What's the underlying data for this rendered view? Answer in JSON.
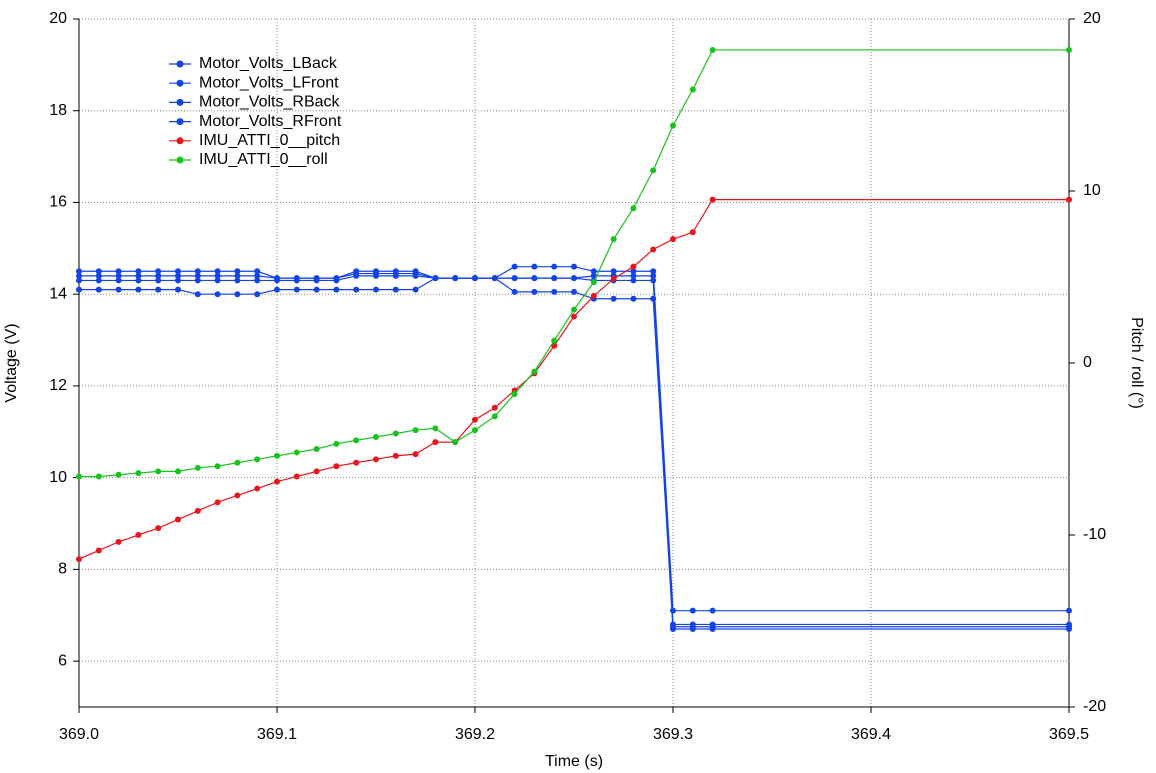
{
  "chart_data": {
    "type": "line",
    "xlabel": "Time (s)",
    "ylabel": "Voltage (V)",
    "y2label": "Pitch / roll (°)",
    "x": [
      369,
      369.01,
      369.02,
      369.03,
      369.04,
      369.05,
      369.06,
      369.07,
      369.08,
      369.09,
      369.1,
      369.11,
      369.12,
      369.13,
      369.14,
      369.15,
      369.16,
      369.17,
      369.18,
      369.19,
      369.2,
      369.21,
      369.22,
      369.23,
      369.24,
      369.25,
      369.26,
      369.27,
      369.28,
      369.29,
      369.3,
      369.31,
      369.32,
      369.5
    ],
    "xlim": [
      369,
      369.5
    ],
    "xticks": [
      {
        "value": 369,
        "label": "369.0"
      },
      369.1,
      369.2,
      369.3,
      369.4,
      369.5
    ],
    "ylim": [
      5,
      20
    ],
    "yticks": [
      6,
      8,
      10,
      12,
      14,
      16,
      18,
      20
    ],
    "y2lim": [
      -20,
      20
    ],
    "y2ticks": [
      -20,
      -10,
      0,
      10,
      20
    ],
    "grid": true,
    "legend": "upper left",
    "series": [
      {
        "name": "Motor_Volts_LBack",
        "color": "#1443e8",
        "values": [
          14.5,
          14.5,
          14.5,
          14.5,
          14.5,
          14.5,
          14.5,
          14.5,
          14.5,
          14.5,
          14.35,
          14.35,
          14.35,
          14.35,
          14.5,
          14.5,
          14.5,
          14.5,
          14.35,
          14.35,
          14.35,
          14.35,
          14.6,
          14.6,
          14.6,
          14.6,
          14.5,
          14.5,
          14.5,
          14.5,
          7.1,
          7.1,
          7.1,
          7.1
        ]
      },
      {
        "name": "Motor_Volts_LFront",
        "color": "#1443e8",
        "values": [
          14.4,
          14.4,
          14.4,
          14.4,
          14.4,
          14.4,
          14.4,
          14.4,
          14.4,
          14.4,
          14.35,
          14.35,
          14.35,
          14.35,
          14.45,
          14.45,
          14.45,
          14.45,
          14.35,
          14.35,
          14.35,
          14.35,
          14.35,
          14.35,
          14.35,
          14.35,
          14.4,
          14.4,
          14.4,
          14.4,
          6.8,
          6.8,
          6.8,
          6.8
        ]
      },
      {
        "name": "Motor_Volts_RBack",
        "color": "#1443e8",
        "values": [
          14.3,
          14.3,
          14.3,
          14.3,
          14.3,
          14.3,
          14.3,
          14.3,
          14.3,
          14.3,
          14.3,
          14.3,
          14.3,
          14.3,
          14.4,
          14.4,
          14.4,
          14.4,
          14.35,
          14.35,
          14.35,
          14.35,
          14.35,
          14.35,
          14.35,
          14.35,
          14.3,
          14.3,
          14.3,
          14.3,
          6.75,
          6.75,
          6.75,
          6.75
        ]
      },
      {
        "name": "Motor_Volts_RFront",
        "color": "#1443e8",
        "values": [
          14.1,
          14.1,
          14.1,
          14.1,
          14.1,
          14.1,
          14,
          14,
          14,
          14,
          14.1,
          14.1,
          14.1,
          14.1,
          14.1,
          14.1,
          14.1,
          14.1,
          14.35,
          14.35,
          14.35,
          14.35,
          14.05,
          14.05,
          14.05,
          14.05,
          13.9,
          13.9,
          13.9,
          13.9,
          6.7,
          6.7,
          6.7,
          6.7
        ]
      },
      {
        "name": "IMU_ATTI_0__pitch",
        "color": "#e8141e",
        "axis": "y2",
        "values": [
          -11.4,
          -10.9,
          -10.4,
          -10,
          -9.6,
          -9.1,
          -8.6,
          -8.1,
          -7.7,
          -7.3,
          -6.9,
          -6.6,
          -6.3,
          -6,
          -5.8,
          -5.6,
          -5.4,
          -5.3,
          -4.6,
          -4.6,
          -3.3,
          -2.6,
          -1.6,
          -0.6,
          1,
          2.7,
          3.9,
          4.9,
          5.6,
          6.6,
          7.2,
          7.6,
          9.5,
          9.5
        ]
      },
      {
        "name": "IMU_ATTI_0__roll",
        "color": "#18c21e",
        "axis": "y2",
        "values": [
          -6.6,
          -6.6,
          -6.5,
          -6.4,
          -6.3,
          -6.3,
          -6.1,
          -6,
          -5.8,
          -5.6,
          -5.4,
          -5.2,
          -5,
          -4.7,
          -4.5,
          -4.3,
          -4.1,
          -3.9,
          -3.8,
          -4.6,
          -3.9,
          -3.1,
          -1.8,
          -0.5,
          1.3,
          3.1,
          4.7,
          7.2,
          9,
          11.2,
          13.8,
          15.9,
          18.2,
          18.2
        ]
      }
    ]
  }
}
